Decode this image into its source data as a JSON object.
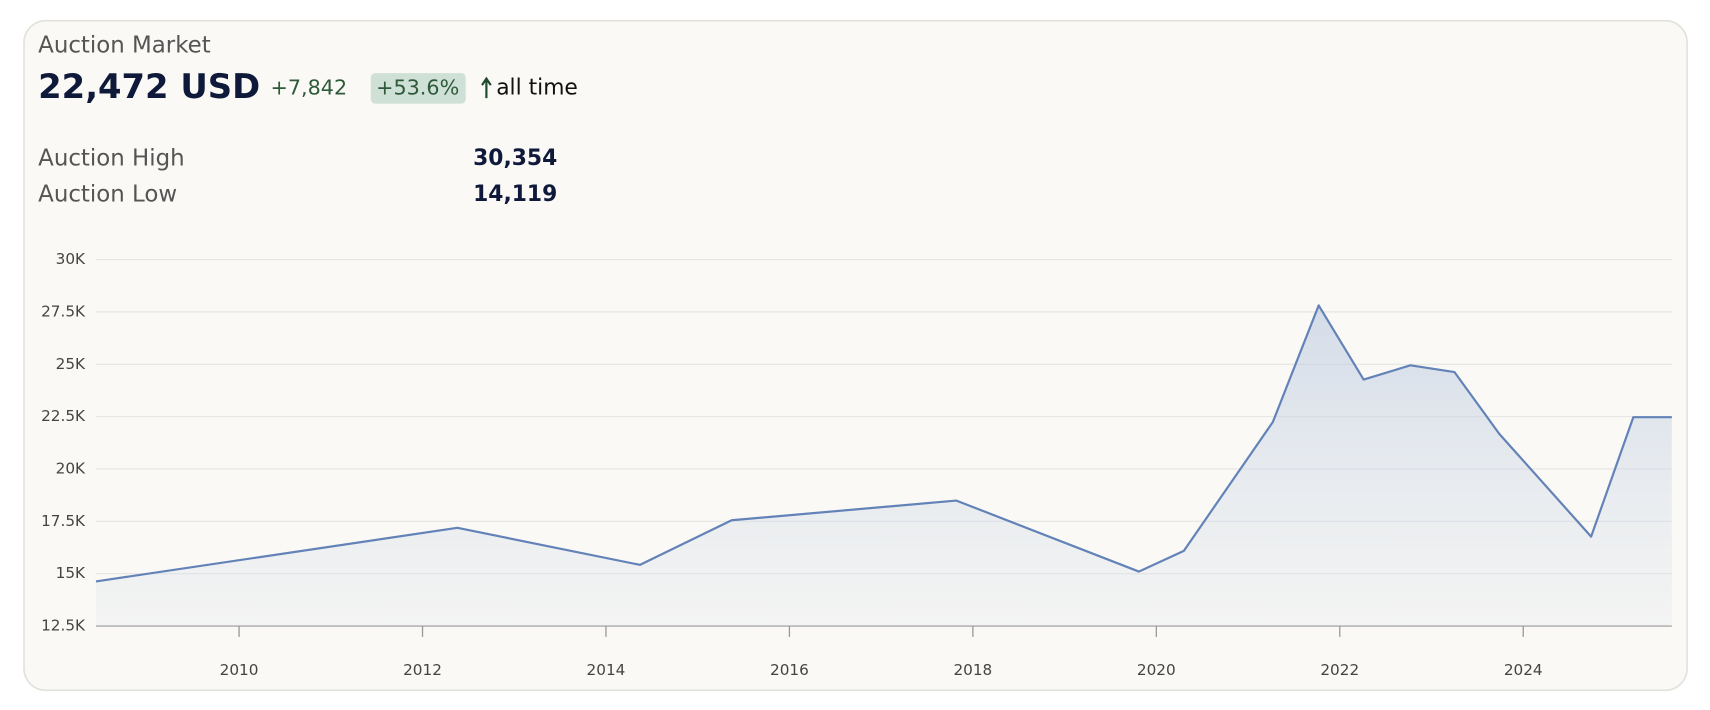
{
  "header": {
    "title": "Auction Market",
    "price": "22,472 USD",
    "change": "+7,842",
    "change_pct": "+53.6%",
    "period": "all time",
    "stats": [
      {
        "label": "Auction High",
        "value": "30,354"
      },
      {
        "label": "Auction Low",
        "value": "14,119"
      }
    ]
  },
  "chart_data": {
    "type": "area",
    "x": [
      2008.44,
      2012.38,
      2014.37,
      2015.37,
      2017.82,
      2019.81,
      2020.3,
      2021.27,
      2021.77,
      2022.26,
      2022.77,
      2023.25,
      2023.74,
      2024.74,
      2025.2,
      2025.62
    ],
    "values": [
      14630,
      17190,
      15420,
      17550,
      18490,
      15100,
      16090,
      22240,
      27810,
      24270,
      24950,
      24630,
      21670,
      16770,
      22472,
      22472
    ],
    "color": "#6282b8",
    "xlim": [
      2008.44,
      2025.62
    ],
    "xticks": [
      2010,
      2012,
      2014,
      2016,
      2018,
      2020,
      2022,
      2024
    ],
    "ylim": [
      12500,
      30000
    ],
    "yticks": [
      {
        "value": 12500,
        "label": "12.5K"
      },
      {
        "value": 15000,
        "label": "15K"
      },
      {
        "value": 17500,
        "label": "17.5K"
      },
      {
        "value": 20000,
        "label": "20K"
      },
      {
        "value": 22500,
        "label": "22.5K"
      },
      {
        "value": 25000,
        "label": "25K"
      },
      {
        "value": 27500,
        "label": "27.5K"
      },
      {
        "value": 30000,
        "label": "30K"
      }
    ],
    "grid": true
  }
}
